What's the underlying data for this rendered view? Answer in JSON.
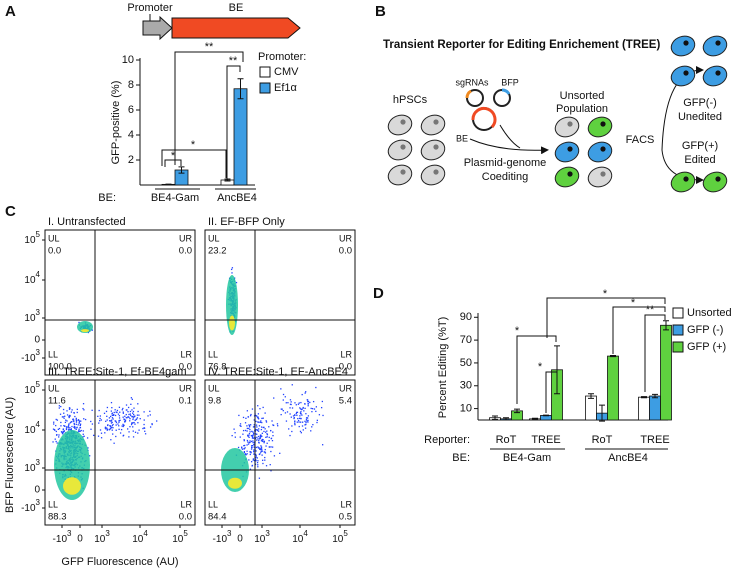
{
  "panel_labels": [
    "A",
    "B",
    "C",
    "D"
  ],
  "construct": {
    "promoter": "Promoter",
    "gene": "BE"
  },
  "chart_data": [
    {
      "type": "bar",
      "y_label": "GFP-positive (%)",
      "x_label": "BE:",
      "categories": [
        "BE4-Gam",
        "AncBE4"
      ],
      "legend_title": "Promoter:",
      "series": [
        {
          "name": "CMV",
          "color": "#ffffff",
          "values": [
            0.05,
            0.4
          ],
          "errors": [
            0.02,
            0.08
          ]
        },
        {
          "name": "Ef1α",
          "color": "#3d9de3",
          "values": [
            1.2,
            7.7
          ],
          "errors": [
            0.25,
            0.8
          ]
        }
      ],
      "ylim": [
        0,
        10
      ],
      "yticks": [
        2,
        4,
        6,
        8,
        10
      ],
      "annotations": [
        "**",
        "**",
        "*",
        "*"
      ]
    },
    {
      "type": "bar",
      "y_label": "Percent Editing (%T)",
      "x_label": "Reporter:",
      "group_label": "BE:",
      "categories": [
        "RoT",
        "TREE",
        "RoT",
        "TREE"
      ],
      "groups": [
        "BE4-Gam",
        "AncBE4"
      ],
      "series": [
        {
          "name": "Unsorted",
          "color": "#ffffff",
          "values": [
            2,
            1,
            21,
            20
          ],
          "errors": [
            1.5,
            0.5,
            2,
            0.5
          ]
        },
        {
          "name": "GFP (-)",
          "color": "#3d9de3",
          "values": [
            1,
            4,
            6,
            21
          ],
          "errors": [
            1,
            0.3,
            7,
            1.5
          ]
        },
        {
          "name": "GFP (+)",
          "color": "#5fd13f",
          "values": [
            8,
            44,
            56,
            83
          ],
          "errors": [
            1.5,
            21,
            0.5,
            4
          ]
        }
      ],
      "ylim": [
        0,
        92
      ],
      "yticks": [
        10,
        30,
        50,
        70,
        90
      ],
      "annotations": [
        "*",
        "*",
        "*",
        "*",
        "**"
      ]
    }
  ],
  "diagram": {
    "title": "Transient Reporter for Editing Enrichement (TREE)",
    "cells": "hPSCs",
    "sgrnas": "sgRNAs",
    "bfp": "BFP",
    "be": "BE",
    "coediting": [
      "Plasmid-genome",
      "Coediting"
    ],
    "unsorted": [
      "Unsorted",
      "Population"
    ],
    "facs": "FACS",
    "negative": [
      "GFP(-)",
      "Unedited"
    ],
    "positive": [
      "GFP(+)",
      "Edited"
    ]
  },
  "flow": {
    "x_label": "GFP Fluorescence (AU)",
    "y_label": "BFP Fluorescence (AU)",
    "ticks": [
      {
        "base": "-10",
        "exp": "3"
      },
      "0",
      {
        "base": "10",
        "exp": "3"
      },
      {
        "base": "10",
        "exp": "4"
      },
      {
        "base": "10",
        "exp": "5"
      }
    ],
    "plots": [
      {
        "title": "I. Untransfected",
        "quadrants": [
          {
            "name": "UL",
            "value": "0.0"
          },
          {
            "name": "UR",
            "value": "0.0"
          },
          {
            "name": "LL",
            "value": "100.0"
          },
          {
            "name": "LR",
            "value": "0.0"
          }
        ]
      },
      {
        "title": "II. EF-BFP Only",
        "quadrants": [
          {
            "name": "UL",
            "value": "23.2"
          },
          {
            "name": "UR",
            "value": "0.0"
          },
          {
            "name": "LL",
            "value": "76.8"
          },
          {
            "name": "LR",
            "value": "0.0"
          }
        ]
      },
      {
        "title": "III. TREE:Site-1, Ef-BE4gam",
        "quadrants": [
          {
            "name": "UL",
            "value": "11.6"
          },
          {
            "name": "UR",
            "value": "0.1"
          },
          {
            "name": "LL",
            "value": "88.3"
          },
          {
            "name": "LR",
            "value": "0.0"
          }
        ]
      },
      {
        "title": "IV. TREE:Site-1, EF-AncBE4",
        "quadrants": [
          {
            "name": "UL",
            "value": "9.8"
          },
          {
            "name": "UR",
            "value": "5.4"
          },
          {
            "name": "LL",
            "value": "84.4"
          },
          {
            "name": "LR",
            "value": "0.5"
          }
        ]
      }
    ]
  }
}
